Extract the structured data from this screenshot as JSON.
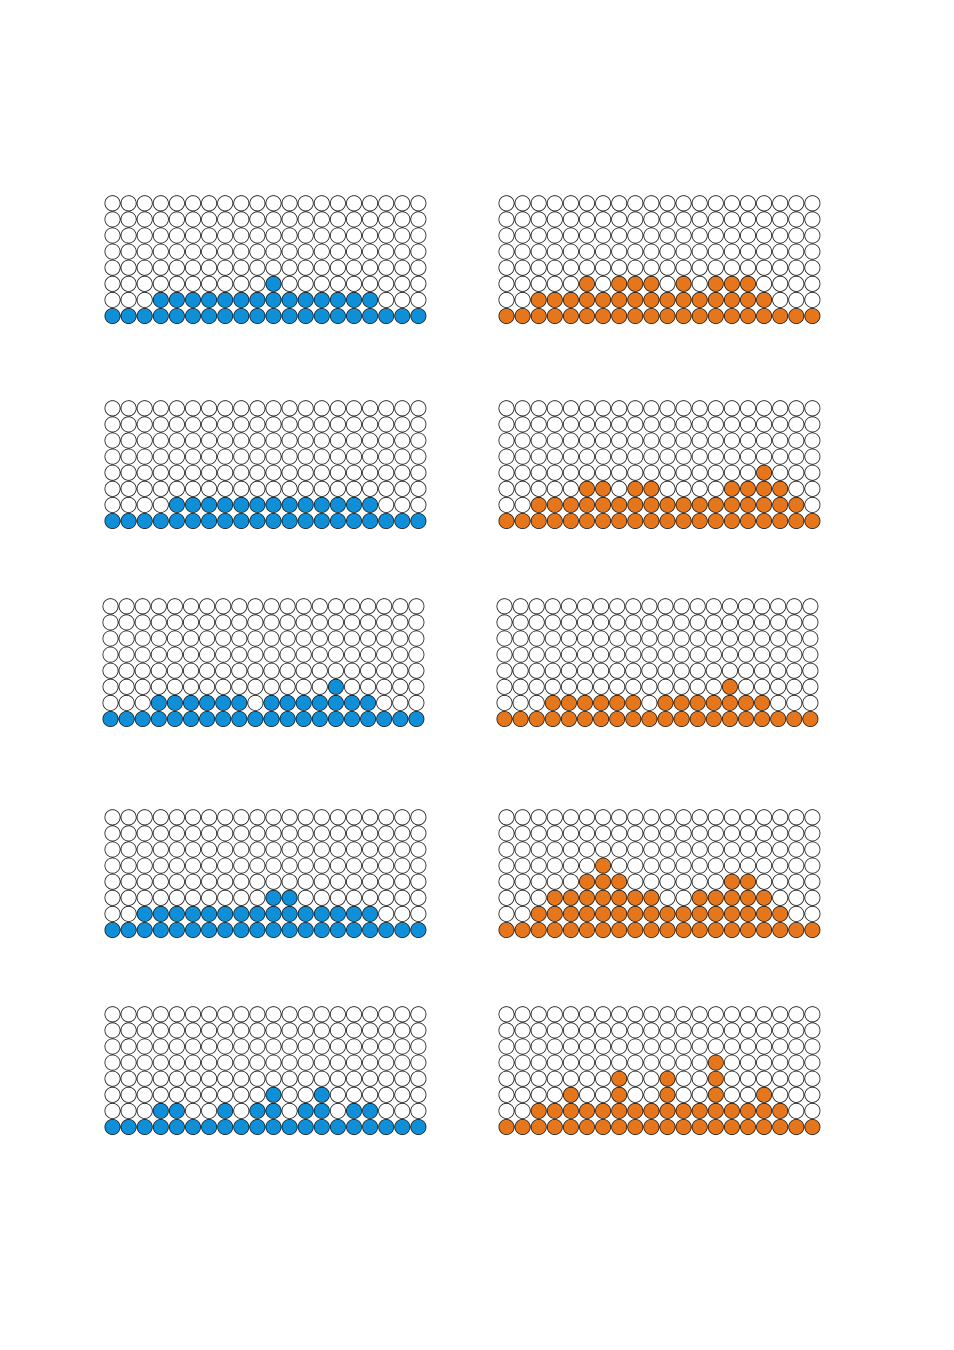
{
  "colors": {
    "blue": "#0f8fd8",
    "orange": "#e6761b",
    "empty": "#ffffff",
    "outline": "#1a1a1a"
  },
  "chart_data": [
    {
      "type": "dot",
      "grid_rows": 8,
      "grid_cols": 20,
      "color": "blue",
      "columns": [
        1,
        1,
        1,
        2,
        2,
        2,
        2,
        2,
        2,
        2,
        3,
        2,
        2,
        2,
        2,
        2,
        2,
        1,
        1,
        1
      ]
    },
    {
      "type": "dot",
      "grid_rows": 8,
      "grid_cols": 20,
      "color": "orange",
      "columns": [
        1,
        1,
        2,
        2,
        2,
        3,
        2,
        3,
        3,
        3,
        2,
        3,
        2,
        3,
        3,
        3,
        2,
        1,
        1,
        1
      ]
    },
    {
      "type": "dot",
      "grid_rows": 8,
      "grid_cols": 20,
      "color": "blue",
      "columns": [
        1,
        1,
        1,
        1,
        2,
        2,
        2,
        2,
        2,
        2,
        2,
        2,
        2,
        2,
        2,
        2,
        2,
        1,
        1,
        1
      ]
    },
    {
      "type": "dot",
      "grid_rows": 8,
      "grid_cols": 20,
      "color": "orange",
      "columns": [
        1,
        1,
        2,
        2,
        2,
        3,
        3,
        2,
        3,
        3,
        2,
        2,
        2,
        2,
        3,
        3,
        4,
        3,
        2,
        1
      ]
    },
    {
      "type": "dot",
      "grid_rows": 8,
      "grid_cols": 20,
      "color": "blue",
      "columns": [
        1,
        1,
        1,
        2,
        2,
        2,
        2,
        2,
        2,
        1,
        2,
        2,
        2,
        2,
        3,
        2,
        2,
        1,
        1,
        1
      ]
    },
    {
      "type": "dot",
      "grid_rows": 8,
      "grid_cols": 20,
      "color": "orange",
      "columns": [
        1,
        1,
        1,
        2,
        2,
        2,
        2,
        2,
        2,
        1,
        2,
        2,
        2,
        2,
        3,
        2,
        2,
        1,
        1,
        1
      ]
    },
    {
      "type": "dot",
      "grid_rows": 8,
      "grid_cols": 20,
      "color": "blue",
      "columns": [
        1,
        1,
        2,
        2,
        2,
        2,
        2,
        2,
        2,
        2,
        3,
        3,
        2,
        2,
        2,
        2,
        2,
        1,
        1,
        1
      ]
    },
    {
      "type": "dot",
      "grid_rows": 8,
      "grid_cols": 20,
      "color": "orange",
      "columns": [
        1,
        1,
        2,
        3,
        3,
        4,
        5,
        4,
        3,
        3,
        2,
        2,
        3,
        3,
        4,
        4,
        3,
        2,
        1,
        1
      ]
    },
    {
      "type": "dot",
      "grid_rows": 8,
      "grid_cols": 20,
      "color": "blue",
      "columns": [
        1,
        1,
        1,
        2,
        2,
        1,
        1,
        2,
        1,
        2,
        3,
        1,
        2,
        3,
        1,
        2,
        2,
        1,
        1,
        1
      ]
    },
    {
      "type": "dot",
      "grid_rows": 8,
      "grid_cols": 20,
      "color": "orange",
      "columns": [
        1,
        1,
        2,
        2,
        3,
        2,
        2,
        4,
        2,
        2,
        4,
        2,
        2,
        5,
        2,
        2,
        3,
        2,
        1,
        1
      ]
    }
  ]
}
